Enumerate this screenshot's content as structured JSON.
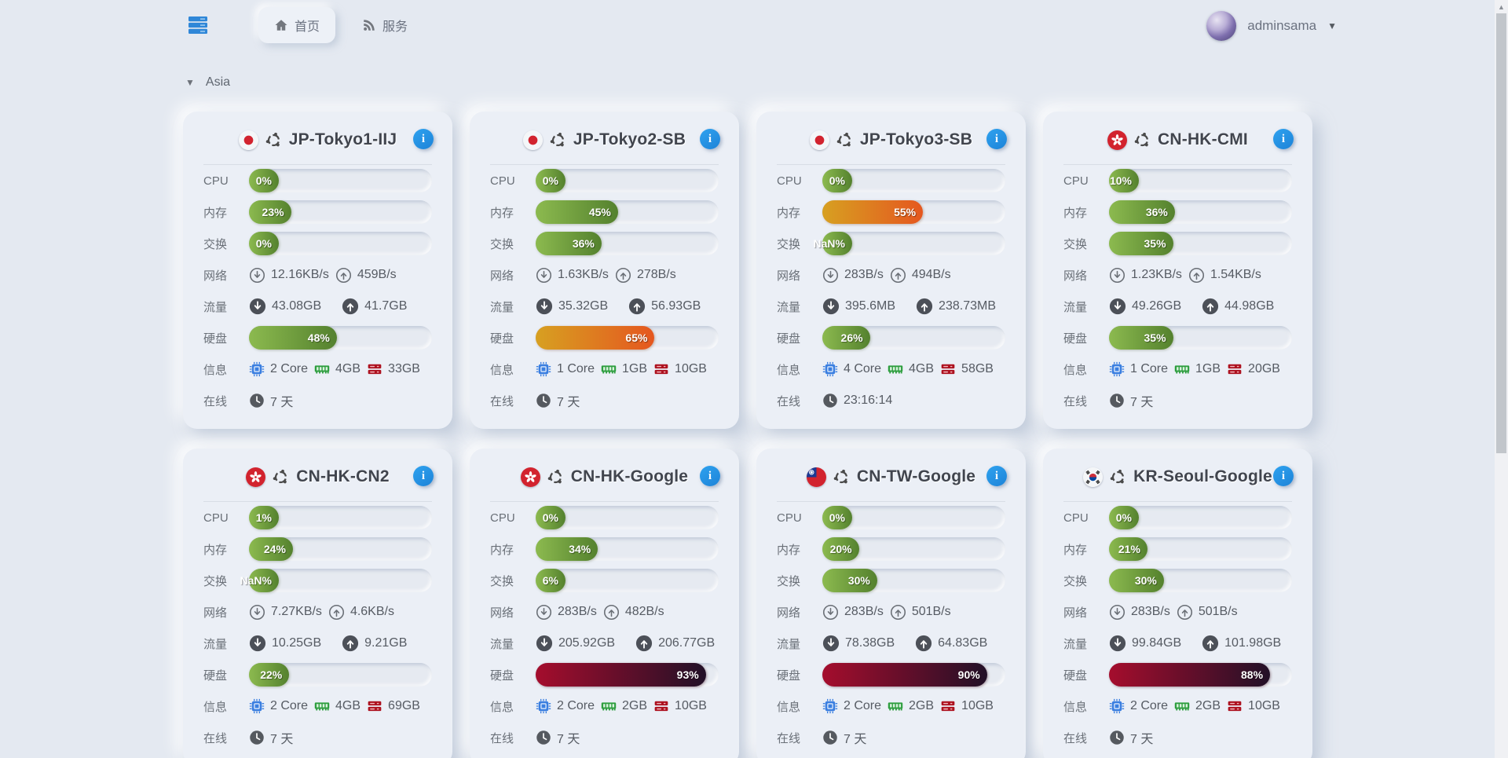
{
  "topbar": {
    "tabs": [
      {
        "label": "首页",
        "active": true
      },
      {
        "label": "服务",
        "active": false
      }
    ],
    "user": {
      "name": "adminsama"
    }
  },
  "region": {
    "label": "Asia"
  },
  "row_labels": {
    "cpu": "CPU",
    "mem": "内存",
    "swap": "交换",
    "net": "网络",
    "traffic": "流量",
    "disk": "硬盘",
    "info": "信息",
    "online": "在线"
  },
  "colors": {
    "accent_blue": "#2196f3",
    "bar_green": [
      "#8cba4f",
      "#54812e"
    ],
    "bar_orange": [
      "#d7a021",
      "#e5571f"
    ],
    "bar_red": [
      "#a50d2d",
      "#221027"
    ]
  },
  "servers": [
    {
      "name": "JP-Tokyo1-IIJ",
      "flag": "jp",
      "os": "ubuntu",
      "cpu": {
        "text": "0%",
        "pct": 0,
        "level": "green"
      },
      "mem": {
        "text": "23%",
        "pct": 23,
        "level": "green"
      },
      "swap": {
        "text": "0%",
        "pct": 0,
        "level": "green"
      },
      "net_down": "12.16KB/s",
      "net_up": "459B/s",
      "traffic_down": "43.08GB",
      "traffic_up": "41.7GB",
      "disk": {
        "text": "48%",
        "pct": 48,
        "level": "green"
      },
      "cores": "2 Core",
      "ram": "4GB",
      "storage": "33GB",
      "uptime": "7 天"
    },
    {
      "name": "JP-Tokyo2-SB",
      "flag": "jp",
      "os": "ubuntu",
      "cpu": {
        "text": "0%",
        "pct": 0,
        "level": "green"
      },
      "mem": {
        "text": "45%",
        "pct": 45,
        "level": "green"
      },
      "swap": {
        "text": "36%",
        "pct": 36,
        "level": "green"
      },
      "net_down": "1.63KB/s",
      "net_up": "278B/s",
      "traffic_down": "35.32GB",
      "traffic_up": "56.93GB",
      "disk": {
        "text": "65%",
        "pct": 65,
        "level": "orange"
      },
      "cores": "1 Core",
      "ram": "1GB",
      "storage": "10GB",
      "uptime": "7 天"
    },
    {
      "name": "JP-Tokyo3-SB",
      "flag": "jp",
      "os": "ubuntu",
      "cpu": {
        "text": "0%",
        "pct": 0,
        "level": "green"
      },
      "mem": {
        "text": "55%",
        "pct": 55,
        "level": "orange"
      },
      "swap": {
        "text": "NaN%",
        "pct": 0,
        "level": "green"
      },
      "net_down": "283B/s",
      "net_up": "494B/s",
      "traffic_down": "395.6MB",
      "traffic_up": "238.73MB",
      "disk": {
        "text": "26%",
        "pct": 26,
        "level": "green"
      },
      "cores": "4 Core",
      "ram": "4GB",
      "storage": "58GB",
      "uptime": "23:16:14"
    },
    {
      "name": "CN-HK-CMI",
      "flag": "hk",
      "os": "ubuntu",
      "cpu": {
        "text": "10%",
        "pct": 10,
        "level": "green"
      },
      "mem": {
        "text": "36%",
        "pct": 36,
        "level": "green"
      },
      "swap": {
        "text": "35%",
        "pct": 35,
        "level": "green"
      },
      "net_down": "1.23KB/s",
      "net_up": "1.54KB/s",
      "traffic_down": "49.26GB",
      "traffic_up": "44.98GB",
      "disk": {
        "text": "35%",
        "pct": 35,
        "level": "green"
      },
      "cores": "1 Core",
      "ram": "1GB",
      "storage": "20GB",
      "uptime": "7 天"
    },
    {
      "name": "CN-HK-CN2",
      "flag": "hk",
      "os": "ubuntu",
      "cpu": {
        "text": "1%",
        "pct": 1,
        "level": "green"
      },
      "mem": {
        "text": "24%",
        "pct": 24,
        "level": "green"
      },
      "swap": {
        "text": "NaN%",
        "pct": 0,
        "level": "green"
      },
      "net_down": "7.27KB/s",
      "net_up": "4.6KB/s",
      "traffic_down": "10.25GB",
      "traffic_up": "9.21GB",
      "disk": {
        "text": "22%",
        "pct": 22,
        "level": "green"
      },
      "cores": "2 Core",
      "ram": "4GB",
      "storage": "69GB",
      "uptime": "7 天"
    },
    {
      "name": "CN-HK-Google",
      "flag": "hk",
      "os": "ubuntu",
      "cpu": {
        "text": "0%",
        "pct": 0,
        "level": "green"
      },
      "mem": {
        "text": "34%",
        "pct": 34,
        "level": "green"
      },
      "swap": {
        "text": "6%",
        "pct": 6,
        "level": "green"
      },
      "net_down": "283B/s",
      "net_up": "482B/s",
      "traffic_down": "205.92GB",
      "traffic_up": "206.77GB",
      "disk": {
        "text": "93%",
        "pct": 93,
        "level": "red"
      },
      "cores": "2 Core",
      "ram": "2GB",
      "storage": "10GB",
      "uptime": "7 天"
    },
    {
      "name": "CN-TW-Google",
      "flag": "tw",
      "os": "ubuntu",
      "cpu": {
        "text": "0%",
        "pct": 0,
        "level": "green"
      },
      "mem": {
        "text": "20%",
        "pct": 20,
        "level": "green"
      },
      "swap": {
        "text": "30%",
        "pct": 30,
        "level": "green"
      },
      "net_down": "283B/s",
      "net_up": "501B/s",
      "traffic_down": "78.38GB",
      "traffic_up": "64.83GB",
      "disk": {
        "text": "90%",
        "pct": 90,
        "level": "red"
      },
      "cores": "2 Core",
      "ram": "2GB",
      "storage": "10GB",
      "uptime": "7 天"
    },
    {
      "name": "KR-Seoul-Google",
      "flag": "kr",
      "os": "ubuntu",
      "cpu": {
        "text": "0%",
        "pct": 0,
        "level": "green"
      },
      "mem": {
        "text": "21%",
        "pct": 21,
        "level": "green"
      },
      "swap": {
        "text": "30%",
        "pct": 30,
        "level": "green"
      },
      "net_down": "283B/s",
      "net_up": "501B/s",
      "traffic_down": "99.84GB",
      "traffic_up": "101.98GB",
      "disk": {
        "text": "88%",
        "pct": 88,
        "level": "red"
      },
      "cores": "2 Core",
      "ram": "2GB",
      "storage": "10GB",
      "uptime": "7 天"
    }
  ]
}
